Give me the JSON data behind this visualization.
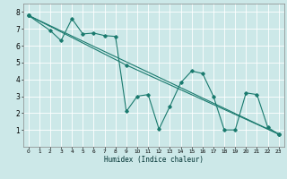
{
  "title": "",
  "xlabel": "Humidex (Indice chaleur)",
  "background_color": "#cce8e8",
  "grid_color": "#ffffff",
  "line_color": "#1a7a6e",
  "xlim": [
    -0.5,
    23.5
  ],
  "ylim": [
    0,
    8.5
  ],
  "xticks": [
    0,
    1,
    2,
    3,
    4,
    5,
    6,
    7,
    8,
    9,
    10,
    11,
    12,
    13,
    14,
    15,
    16,
    17,
    18,
    19,
    20,
    21,
    22,
    23
  ],
  "yticks": [
    1,
    2,
    3,
    4,
    5,
    6,
    7,
    8
  ],
  "line1_x": [
    0,
    2,
    3,
    4,
    5,
    6,
    7,
    8,
    9,
    10,
    11,
    12,
    13,
    14,
    15,
    16,
    17,
    18,
    19,
    20,
    21,
    22,
    23
  ],
  "line1_y": [
    7.8,
    6.9,
    6.3,
    7.6,
    6.7,
    6.75,
    6.6,
    6.55,
    2.1,
    3.0,
    3.1,
    1.05,
    2.4,
    3.8,
    4.5,
    4.35,
    3.0,
    1.0,
    1.0,
    3.2,
    3.1,
    1.15,
    0.75
  ],
  "line2_x": [
    0,
    23
  ],
  "line2_y": [
    7.8,
    0.75
  ],
  "line3_x": [
    0,
    9,
    23
  ],
  "line3_y": [
    7.8,
    4.85,
    0.75
  ]
}
